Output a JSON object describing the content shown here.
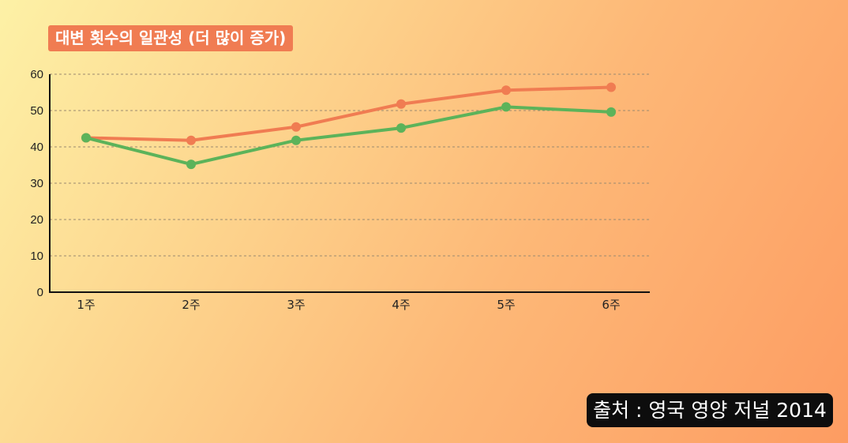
{
  "title": "대변 횟수의 일관성 (더 많이 증가)",
  "source": "출처 : 영국 영양 저널 2014",
  "colors": {
    "series_orange": "#f07c52",
    "series_green": "#5cb35a",
    "title_bg": "#f07c52"
  },
  "chart_data": {
    "type": "line",
    "categories": [
      "1주",
      "2주",
      "3주",
      "4주",
      "5주",
      "6주"
    ],
    "series": [
      {
        "values": [
          42.5,
          41.8,
          45.5,
          51.8,
          55.6,
          56.4
        ],
        "color": "#f07c52"
      },
      {
        "values": [
          42.5,
          35.2,
          41.8,
          45.2,
          51.0,
          49.6
        ],
        "color": "#5cb35a"
      }
    ],
    "ylim": [
      0,
      60
    ],
    "yticks": [
      0,
      10,
      20,
      30,
      40,
      50,
      60
    ],
    "grid": true,
    "legend": "none"
  }
}
